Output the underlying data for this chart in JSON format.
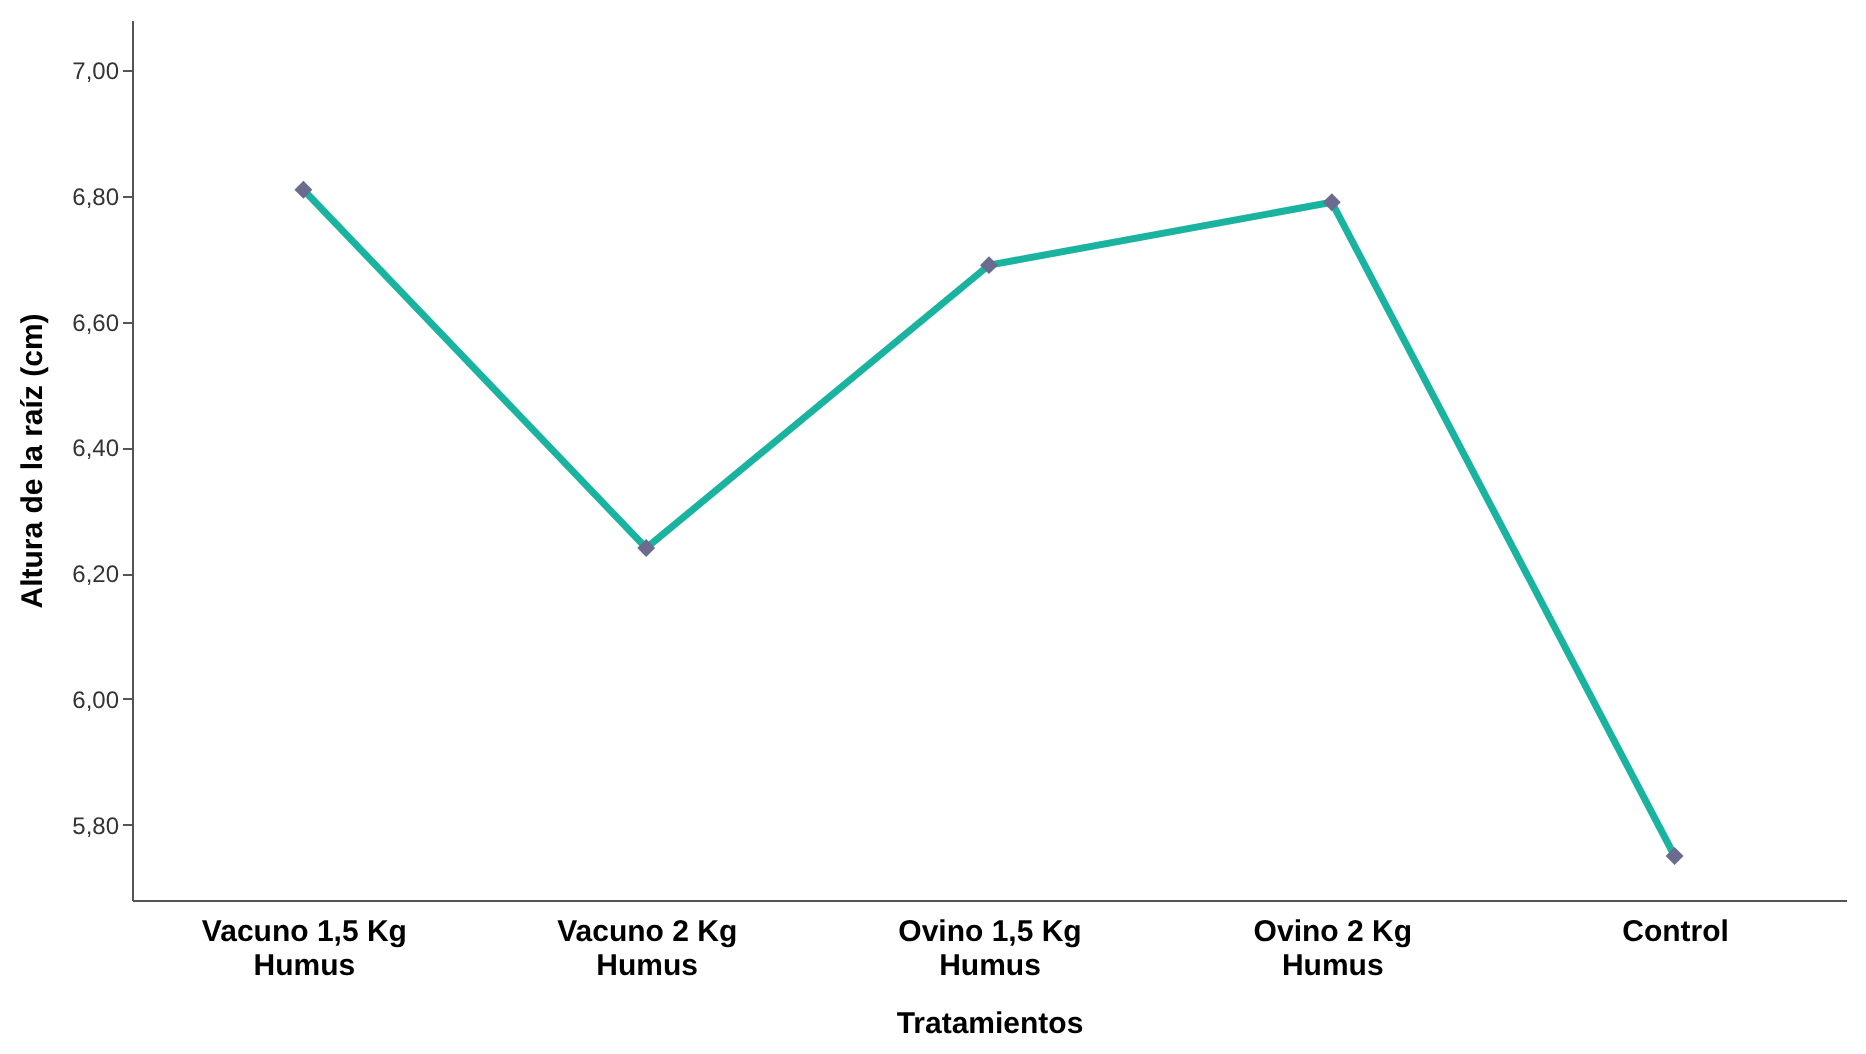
{
  "chart_data": {
    "type": "line",
    "xlabel": "Tratamientos",
    "ylabel": "Altura de la raíz (cm)",
    "categories": [
      "Vacuno 1,5 Kg Humus",
      "Vacuno 2 Kg Humus",
      "Ovino 1,5 Kg Humus",
      "Ovino 2 Kg Humus",
      "Control"
    ],
    "series": [
      {
        "color": "#1ab3a0",
        "colors": [
          "#6b6b8f",
          "#6b6b8f",
          "#6b6b8f",
          "#6b6b8f",
          "#6b6b8f"
        ],
        "values": [
          6.81,
          6.24,
          6.69,
          6.79,
          5.75
        ]
      }
    ],
    "marker": "diamond",
    "grid": false,
    "line_style": "solid",
    "ylim": [
      5.68,
      7.08
    ],
    "yticks": [
      {
        "value": 5.8,
        "label": "5,80"
      },
      {
        "value": 6.0,
        "label": "6,00"
      },
      {
        "value": 6.2,
        "label": "6,20"
      },
      {
        "value": 6.4,
        "label": "6,40"
      },
      {
        "value": 6.6,
        "label": "6,60"
      },
      {
        "value": 6.8,
        "label": "6,80"
      },
      {
        "value": 7.0,
        "label": "7,00"
      }
    ]
  }
}
